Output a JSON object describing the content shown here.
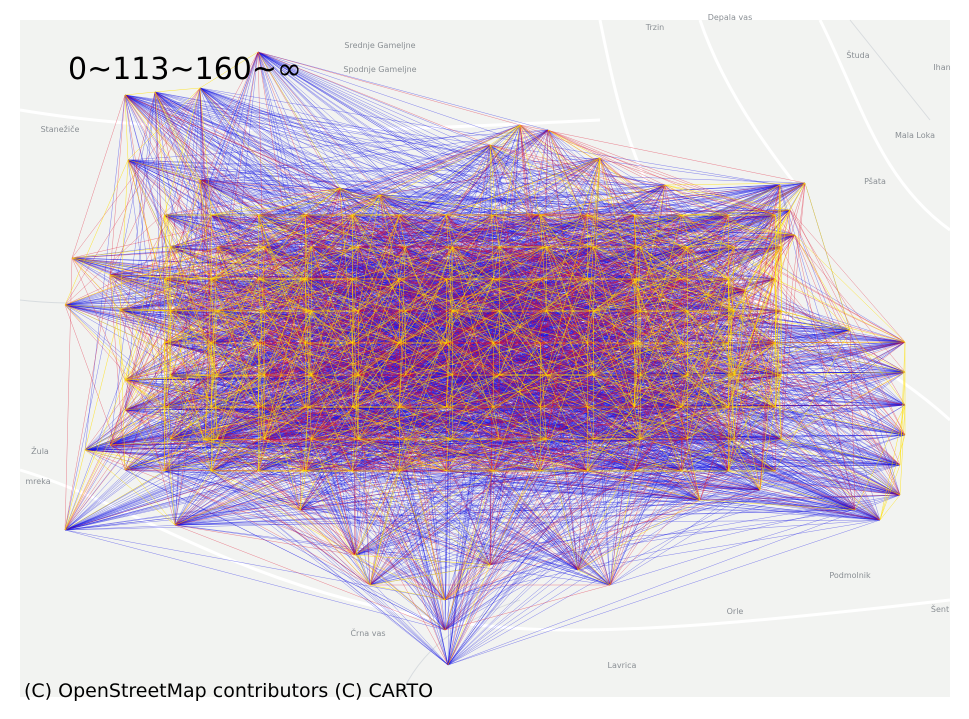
{
  "title": "0~113~160~∞",
  "attribution": "(C) OpenStreetMap contributors (C) CARTO",
  "places": [
    "Trzin",
    "Depala vas",
    "Srednje Gameljne",
    "Spodnje Gameljne",
    "Stanežiče",
    "Študa",
    "Ihan",
    "Mala Loka",
    "Pšata",
    "Žula",
    "mreka",
    "Podmolnik",
    "Orle",
    "Šent",
    "Črna vas",
    "Lavrica"
  ]
}
